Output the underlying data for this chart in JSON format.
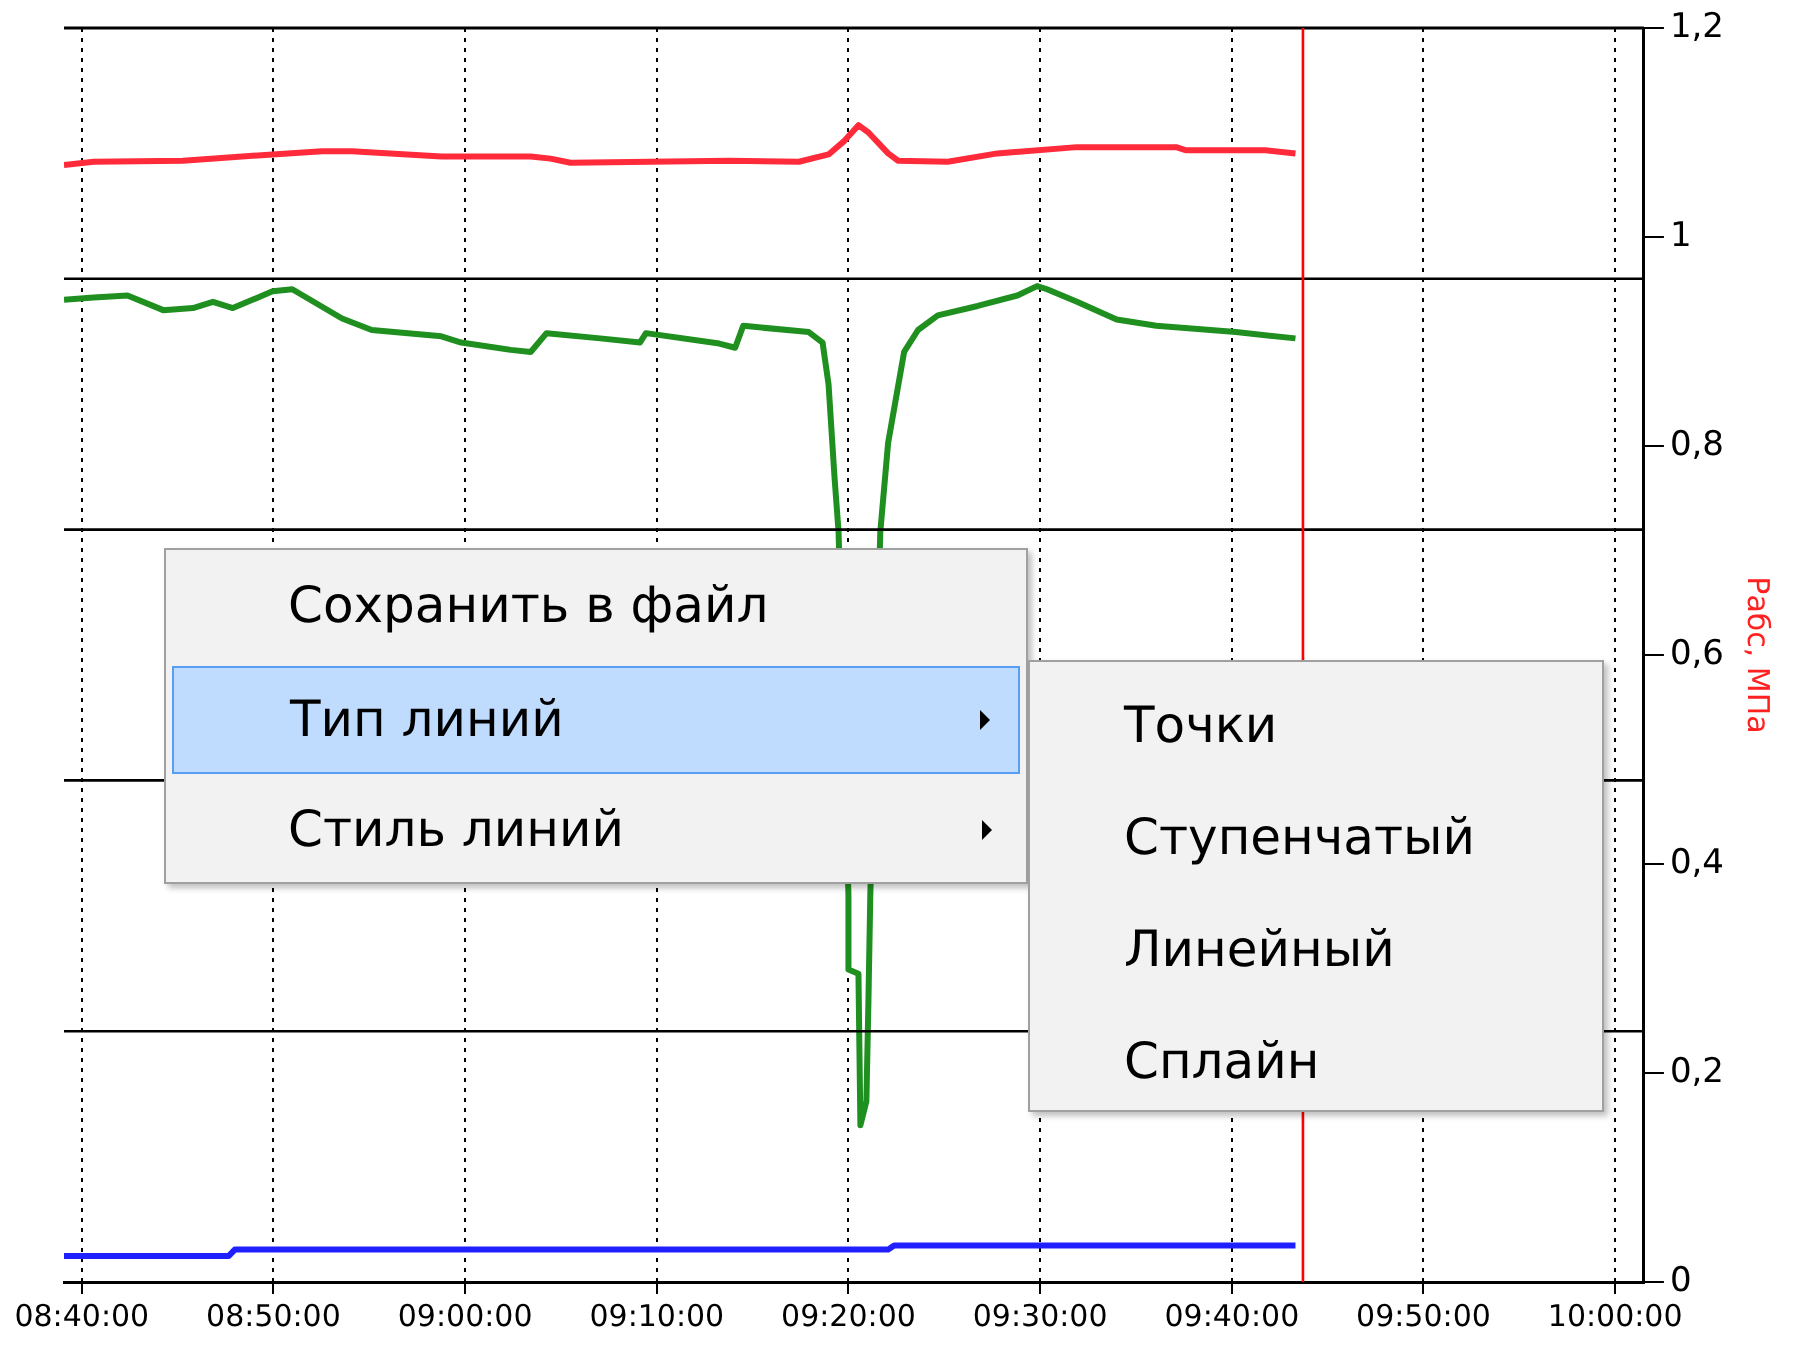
{
  "chart_data": {
    "type": "line",
    "ylabel": "Рабс, МПа",
    "xlim": [
      8.6512,
      10.025
    ],
    "ylim": [
      0,
      1.2
    ],
    "xticks": [
      {
        "value": 8.6667,
        "label": "08:40:00"
      },
      {
        "value": 8.8333,
        "label": "08:50:00"
      },
      {
        "value": 9,
        "label": "09:00:00"
      },
      {
        "value": 9.1667,
        "label": "09:10:00"
      },
      {
        "value": 9.3333,
        "label": "09:20:00"
      },
      {
        "value": 9.5,
        "label": "09:30:00"
      },
      {
        "value": 9.6667,
        "label": "09:40:00"
      },
      {
        "value": 9.8333,
        "label": "09:50:00"
      },
      {
        "value": 10,
        "label": "10:00:00"
      }
    ],
    "yticks": [
      0,
      {
        "value": 0.2,
        "label": "0,2"
      },
      {
        "value": 0.4,
        "label": "0,4"
      },
      {
        "value": 0.6,
        "label": "0,6"
      },
      {
        "value": 0.8,
        "label": "0,8"
      },
      1,
      {
        "value": 1.2,
        "label": "1,2"
      }
    ],
    "grid": "x",
    "line_style": "solid",
    "series": [
      {
        "color": "#ff2a3a",
        "x": [
          8.6512,
          8.677,
          8.7547,
          8.8325,
          8.8757,
          8.9015,
          8.9793,
          9.057,
          9.0743,
          9.0915,
          9.2297,
          9.2902,
          9.316,
          9.3298,
          9.342,
          9.3507,
          9.3678,
          9.3765,
          9.4197,
          9.4628,
          9.532,
          9.6183,
          9.627,
          9.696,
          9.722
        ],
        "values": [
          1.069,
          1.072,
          1.073,
          1.079,
          1.082,
          1.082,
          1.077,
          1.077,
          1.075,
          1.071,
          1.073,
          1.072,
          1.079,
          1.092,
          1.107,
          1.1,
          1.08,
          1.073,
          1.072,
          1.08,
          1.086,
          1.086,
          1.083,
          1.083,
          1.08
        ]
      },
      {
        "color": "#1f8f1f",
        "x": [
          8.6512,
          8.677,
          8.7064,
          8.7375,
          8.7634,
          8.7807,
          8.798,
          8.8325,
          8.8497,
          8.893,
          8.9188,
          8.9793,
          8.9965,
          9.0397,
          9.057,
          9.0708,
          9.1175,
          9.152,
          9.1572,
          9.221,
          9.2348,
          9.2418,
          9.2988,
          9.3108,
          9.316,
          9.3212,
          9.3247,
          9.3333,
          9.3333,
          9.342,
          9.3437,
          9.3489,
          9.3507,
          9.3523,
          9.361,
          9.3678,
          9.3817,
          9.3938,
          9.411,
          9.4457,
          9.4802,
          9.4973,
          9.506,
          9.532,
          9.5665,
          9.601,
          9.6702,
          9.722
        ],
        "values": [
          0.94,
          0.942,
          0.944,
          0.93,
          0.932,
          0.938,
          0.932,
          0.948,
          0.95,
          0.922,
          0.911,
          0.905,
          0.899,
          0.892,
          0.89,
          0.908,
          0.903,
          0.899,
          0.908,
          0.898,
          0.894,
          0.915,
          0.909,
          0.899,
          0.859,
          0.77,
          0.718,
          0.37,
          0.299,
          0.295,
          0.15,
          0.173,
          0.27,
          0.37,
          0.718,
          0.803,
          0.89,
          0.911,
          0.925,
          0.934,
          0.944,
          0.953,
          0.95,
          0.938,
          0.921,
          0.915,
          0.909,
          0.903
        ]
      },
      {
        "color": "#2020ff",
        "x": [
          8.6512,
          8.7945,
          8.7997,
          9.3678,
          9.373,
          9.722
        ],
        "values": [
          0.025,
          0.025,
          0.031,
          0.031,
          0.035,
          0.035
        ]
      }
    ],
    "ref_lines": [
      {
        "axis": "y",
        "value": 0.24,
        "color": "#000000"
      },
      {
        "axis": "y",
        "value": 0.48,
        "color": "#000000"
      },
      {
        "axis": "y",
        "value": 0.72,
        "color": "#000000"
      },
      {
        "axis": "y",
        "value": 0.96,
        "color": "#000000"
      },
      {
        "axis": "x",
        "value": 9.7285,
        "color": "#ff0000"
      }
    ],
    "annotations": [
      "Сохранить в файл",
      "Тип линий",
      "Стиль линий",
      "Точки",
      "Ступенчатый",
      "Линейный",
      "Сплайн"
    ]
  }
}
